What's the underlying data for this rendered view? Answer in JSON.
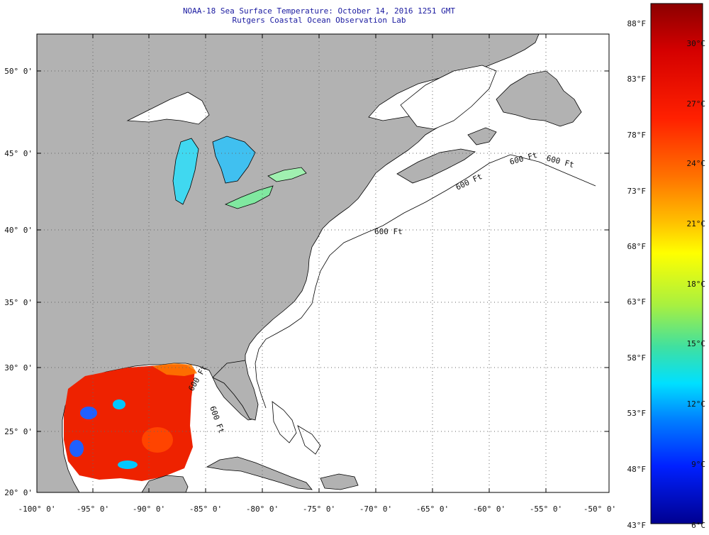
{
  "title": {
    "line1": "NOAA-18 Sea Surface Temperature:  October 14, 2016 1251 GMT",
    "line2": "Rutgers Coastal Ocean Observation Lab"
  },
  "lat_labels": [
    "50° 0'",
    "45° 0'",
    "40° 0'",
    "35° 0'",
    "30° 0'",
    "25° 0'",
    "20° 0'"
  ],
  "lon_labels": [
    "-100° 0'",
    "-95° 0'",
    "-90° 0'",
    "-85° 0'",
    "-80° 0'",
    "-75° 0'",
    "-70° 0'",
    "-65° 0'",
    "-60° 0'",
    "-55° 0'",
    "-50° 0'"
  ],
  "depth_contour_labels": [
    "600 Ft",
    "600 Ft",
    "600 Ft",
    "600 Ft",
    "600 Ft",
    "600 Ft"
  ],
  "colorbar": {
    "fahrenheit_labels": [
      "88°F",
      "83°F",
      "78°F",
      "73°F",
      "68°F",
      "63°F",
      "58°F",
      "53°F",
      "48°F",
      "43°F"
    ],
    "celsius_labels": [
      "30°C",
      "27°C",
      "24°C",
      "21°C",
      "18°C",
      "15°C",
      "12°C",
      "9°C",
      "6°C"
    ],
    "gradient_colors": [
      "#8b0000",
      "#d40000",
      "#ff2000",
      "#ff7000",
      "#ffc000",
      "#ffff00",
      "#a8f040",
      "#40e0a0",
      "#00e0ff",
      "#0080ff",
      "#0020ff",
      "#000090"
    ]
  },
  "colors": {
    "land": "#b2b2b2",
    "ocean": "#ffffff",
    "title": "#1a1aa0",
    "coast": "#000000"
  }
}
